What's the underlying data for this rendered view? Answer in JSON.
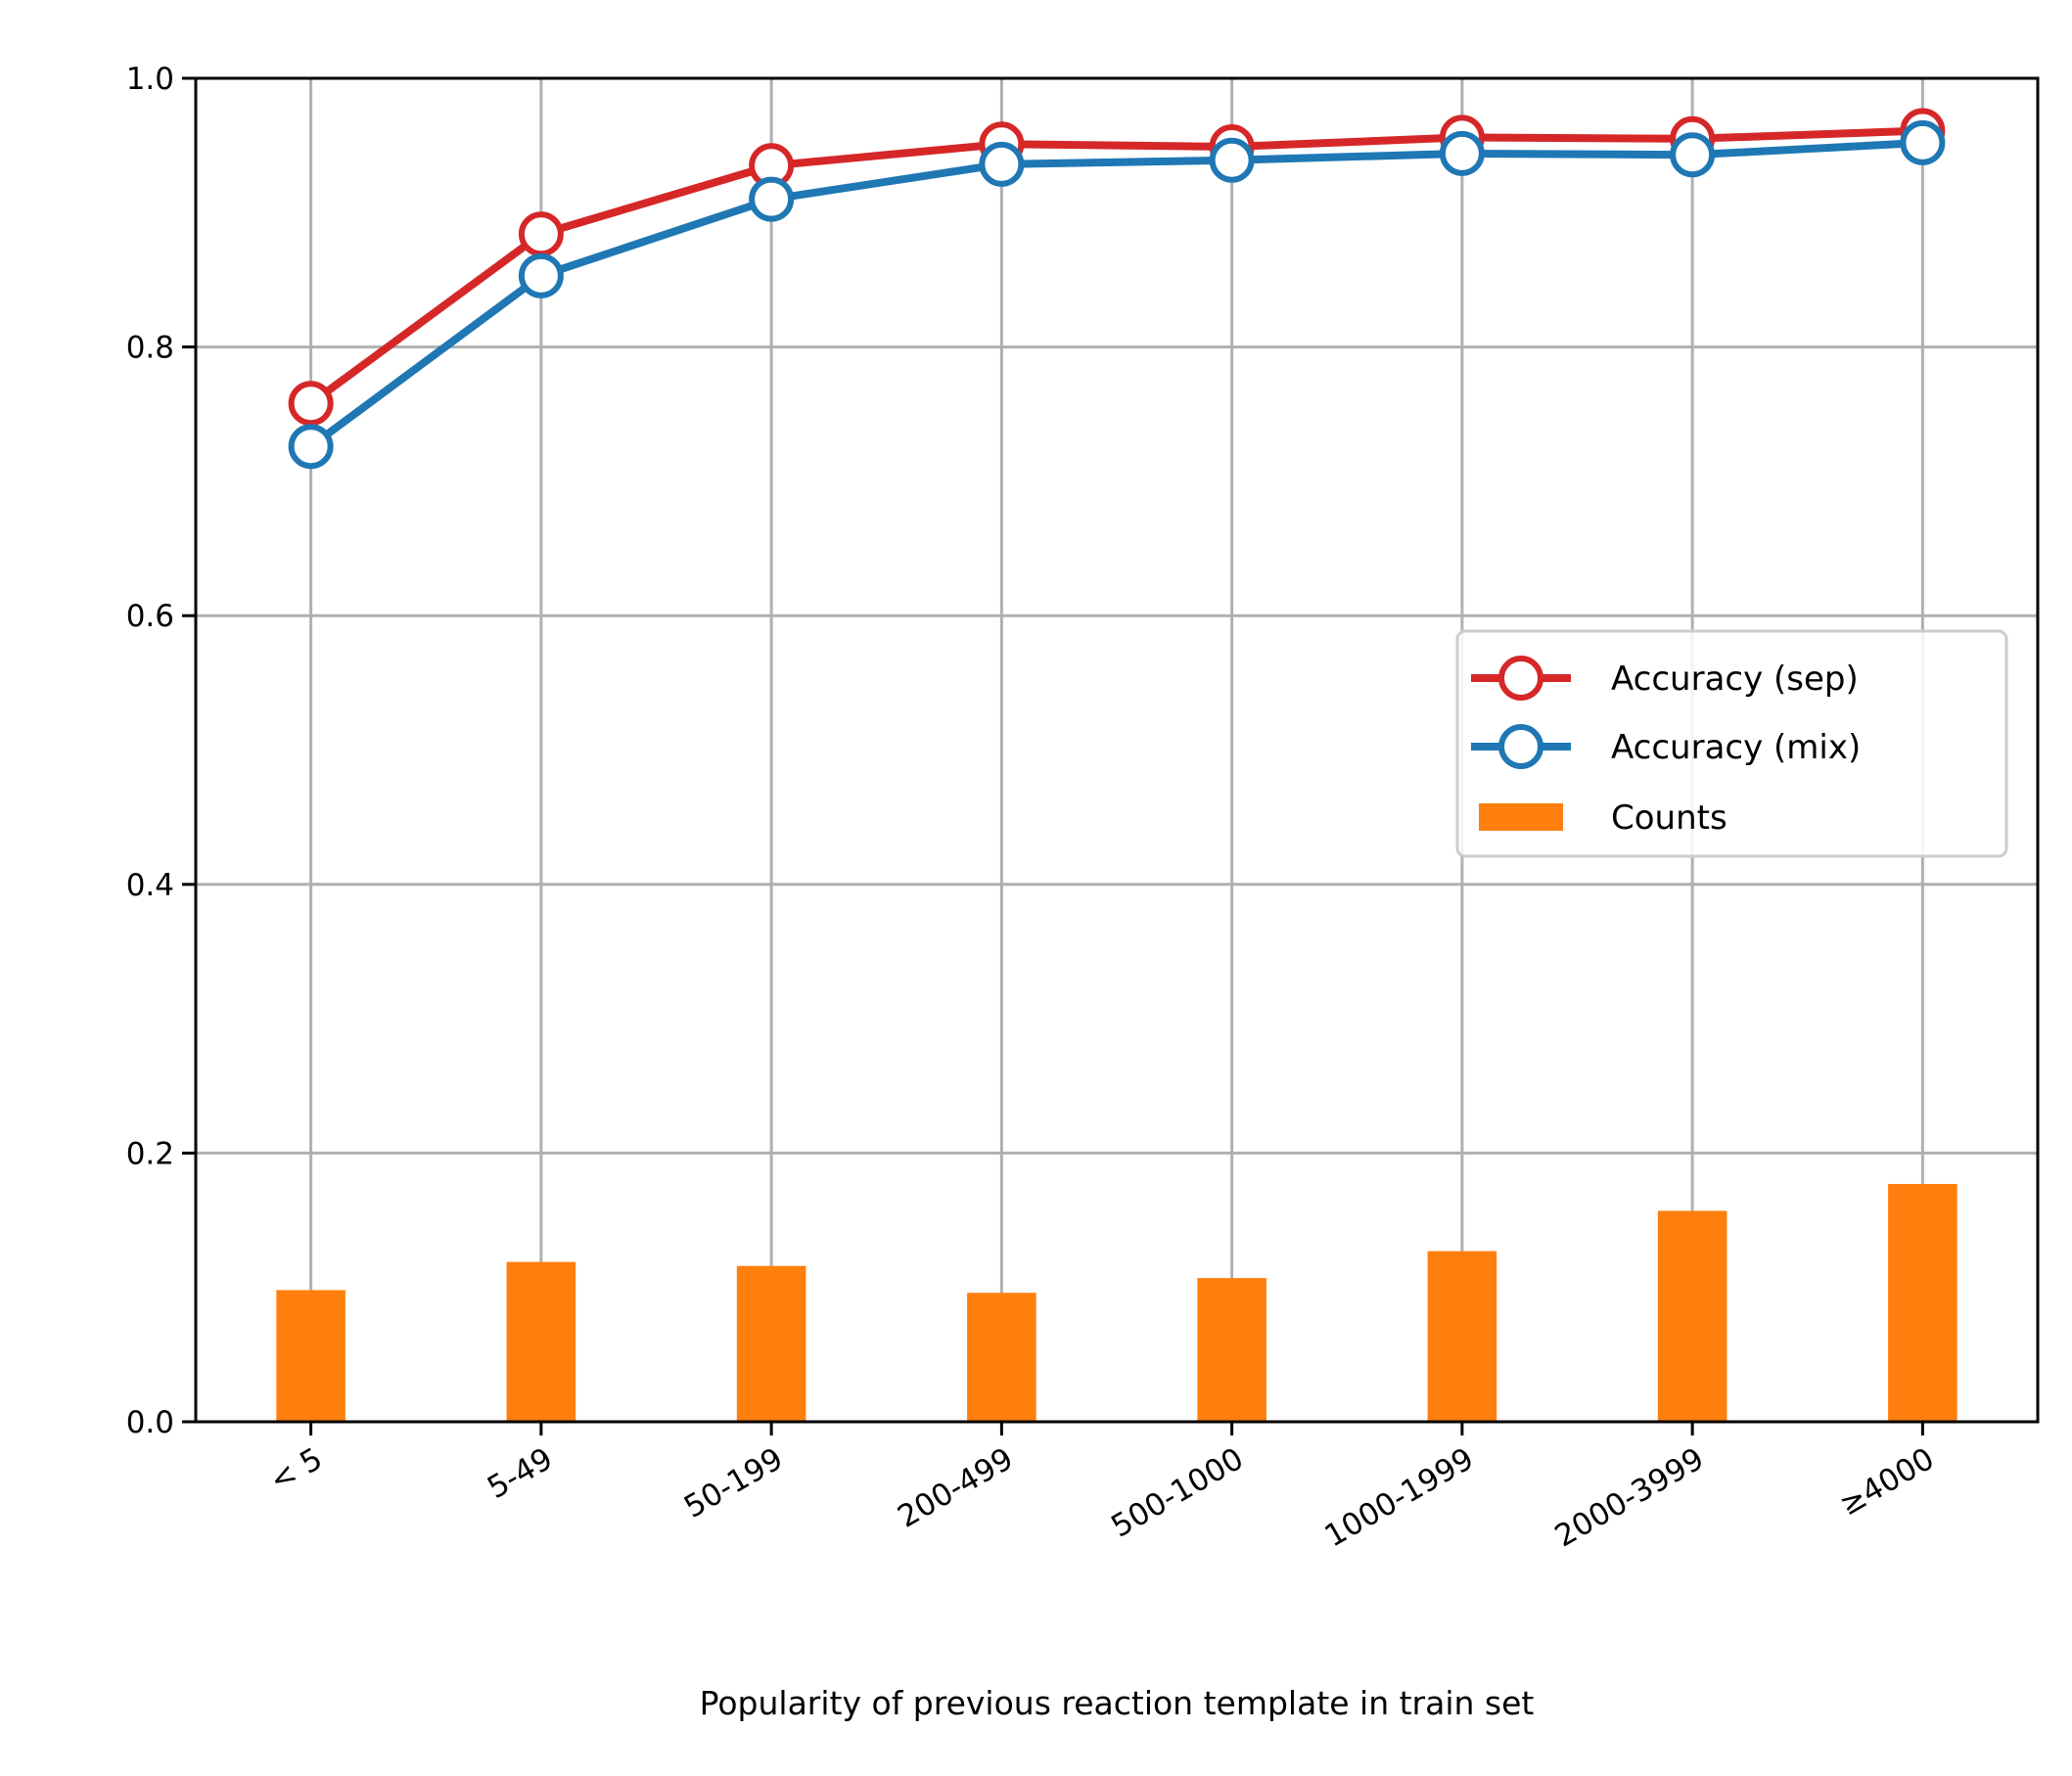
{
  "chart_data": {
    "type": "bar+line",
    "title": "",
    "xlabel": "Popularity of previous reaction template in train set",
    "ylabel": "",
    "ylim": [
      0,
      1.0
    ],
    "yticks": [
      "0.0",
      "0.2",
      "0.4",
      "0.6",
      "0.8",
      "1.0"
    ],
    "categories": [
      "< 5",
      "5-49",
      "50-199",
      "200-499",
      "500-1000",
      "1000-1999",
      "2000-3999",
      "≥4000"
    ],
    "grid": true,
    "legend_position": "center-right",
    "series": [
      {
        "name": "Accuracy (sep)",
        "kind": "line",
        "color": "#d62728",
        "marker": "open-circle",
        "values": [
          0.758,
          0.884,
          0.935,
          0.951,
          0.949,
          0.956,
          0.955,
          0.961
        ]
      },
      {
        "name": "Accuracy (mix)",
        "kind": "line",
        "color": "#1f77b4",
        "marker": "open-circle",
        "values": [
          0.726,
          0.853,
          0.91,
          0.936,
          0.939,
          0.944,
          0.943,
          0.952
        ]
      },
      {
        "name": "Counts",
        "kind": "bar",
        "color": "#ff7f0e",
        "values": [
          0.098,
          0.119,
          0.116,
          0.096,
          0.107,
          0.127,
          0.157,
          0.177
        ]
      }
    ]
  }
}
